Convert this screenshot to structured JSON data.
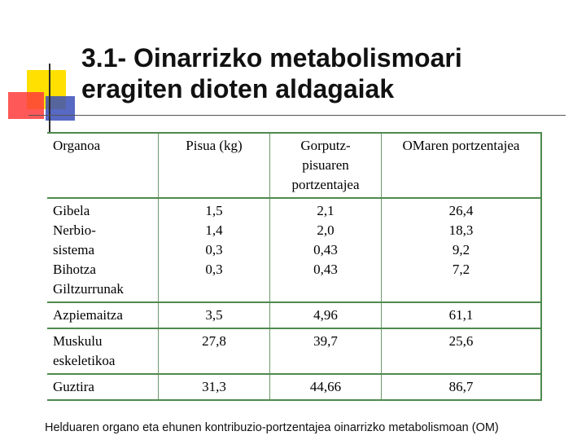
{
  "slide": {
    "title_line1": "3.1- Oinarrizko metabolismoari",
    "title_line2": "eragiten dioten aldagaiak",
    "caption": "Helduaren organo eta ehunen kontribuzio-portzentajea oinarrizko metabolismoan (OM)"
  },
  "table": {
    "headers": [
      [
        "Organoa"
      ],
      [
        "Pisua (kg)"
      ],
      [
        "Gorputz-",
        "pisuaren",
        "portzentajea"
      ],
      [
        "OMaren portzentajea"
      ]
    ],
    "rows": [
      {
        "organ": [
          "Gibela",
          "Nerbio-",
          "sistema",
          "Bihotza",
          "Giltzurrunak"
        ],
        "weight": [
          "1,5",
          "1,4",
          "0,3",
          "0,3"
        ],
        "body_pct": [
          "2,1",
          "2,0",
          "0,43",
          "0,43"
        ],
        "om_pct": [
          "26,4",
          "18,3",
          "9,2",
          "7,2"
        ]
      },
      {
        "organ": [
          "Azpiemaitza"
        ],
        "weight": [
          "3,5"
        ],
        "body_pct": [
          "4,96"
        ],
        "om_pct": [
          "61,1"
        ]
      },
      {
        "organ": [
          "Muskulu",
          "eskeletikoa"
        ],
        "weight": [
          "27,8"
        ],
        "body_pct": [
          "39,7"
        ],
        "om_pct": [
          "25,6"
        ]
      },
      {
        "organ": [
          "Guztira"
        ],
        "weight": [
          "31,3"
        ],
        "body_pct": [
          "44,66"
        ],
        "om_pct": [
          "86,7"
        ]
      }
    ]
  }
}
